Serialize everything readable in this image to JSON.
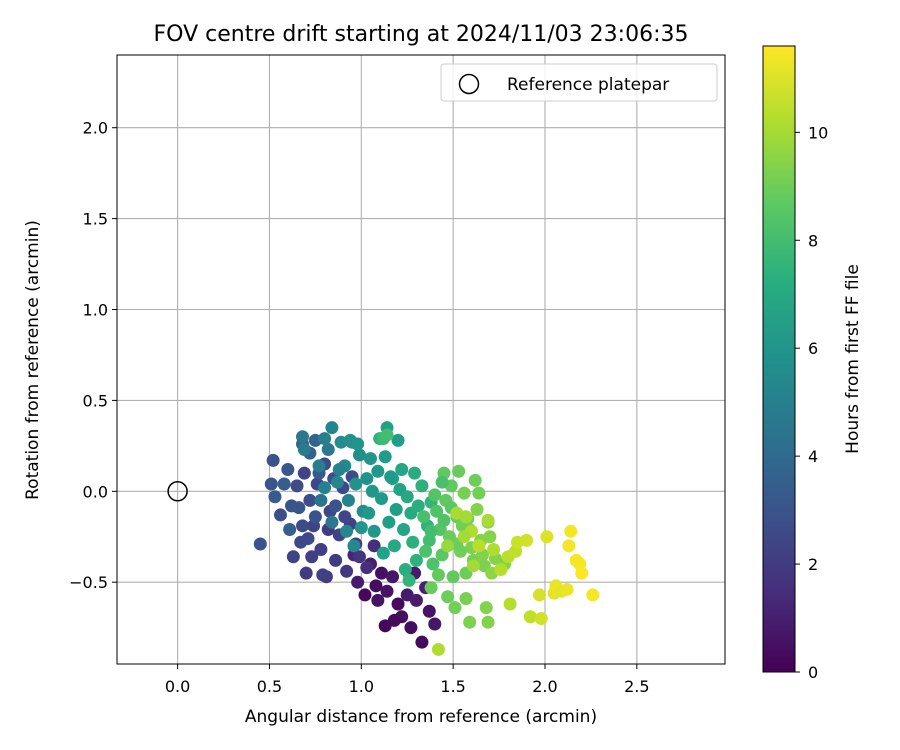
{
  "chart_data": {
    "type": "scatter",
    "title": "FOV centre drift starting at 2024/11/03 23:06:35",
    "xlabel": "Angular distance from reference (arcmin)",
    "ylabel": "Rotation from reference (arcmin)",
    "xlim": [
      -0.33,
      2.98
    ],
    "ylim": [
      -0.95,
      2.4
    ],
    "xticks": [
      0.0,
      0.5,
      1.0,
      1.5,
      2.0,
      2.5
    ],
    "yticks": [
      -0.5,
      0.0,
      0.5,
      1.0,
      1.5,
      2.0
    ],
    "xtick_labels": [
      "0.0",
      "0.5",
      "1.0",
      "1.5",
      "2.0",
      "2.5"
    ],
    "ytick_labels": [
      "−0.5",
      "0.0",
      "0.5",
      "1.0",
      "1.5",
      "2.0"
    ],
    "grid": true,
    "legend": {
      "placement": "top-right",
      "entries": [
        "Reference platepar"
      ]
    },
    "reference_point": {
      "x": 0.0,
      "y": 0.0,
      "label": "Reference platepar"
    },
    "colorbar": {
      "label": "Hours from first FF file",
      "colormap": "viridis",
      "range": [
        0,
        11.6
      ],
      "ticks": [
        0,
        2,
        4,
        6,
        8,
        10
      ],
      "tick_labels": [
        "0",
        "2",
        "4",
        "6",
        "8",
        "10"
      ]
    },
    "series": [
      {
        "points": [
          [
            1.02,
            -0.57,
            0.2
          ],
          [
            1.08,
            -0.52,
            0.4
          ],
          [
            1.11,
            -0.45,
            0.5
          ],
          [
            1.14,
            -0.55,
            0.6
          ],
          [
            1.17,
            -0.47,
            0.7
          ],
          [
            1.2,
            -0.62,
            0.3
          ],
          [
            1.22,
            -0.69,
            0.5
          ],
          [
            1.25,
            -0.57,
            0.8
          ],
          [
            1.27,
            -0.75,
            0.4
          ],
          [
            1.3,
            -0.6,
            0.9
          ],
          [
            1.33,
            -0.83,
            0.3
          ],
          [
            1.37,
            -0.66,
            0.6
          ],
          [
            1.13,
            -0.74,
            0.2
          ],
          [
            1.18,
            -0.71,
            0.3
          ],
          [
            1.26,
            -0.45,
            1.0
          ],
          [
            1.35,
            -0.53,
            1.1
          ],
          [
            1.4,
            -0.73,
            0.7
          ],
          [
            0.98,
            -0.5,
            0.9
          ],
          [
            1.05,
            -0.4,
            1.0
          ],
          [
            0.96,
            -0.35,
            1.2
          ],
          [
            1.29,
            -0.45,
            0.9
          ],
          [
            1.09,
            -0.6,
            0.6
          ],
          [
            0.45,
            -0.29,
            3.0
          ],
          [
            0.51,
            0.04,
            3.1
          ],
          [
            0.52,
            0.17,
            2.9
          ],
          [
            0.56,
            -0.13,
            2.8
          ],
          [
            0.6,
            0.12,
            3.2
          ],
          [
            0.62,
            -0.08,
            3.0
          ],
          [
            0.65,
            0.03,
            2.6
          ],
          [
            0.67,
            -0.28,
            2.5
          ],
          [
            0.69,
            0.1,
            2.4
          ],
          [
            0.72,
            -0.05,
            2.7
          ],
          [
            0.74,
            -0.19,
            2.3
          ],
          [
            0.76,
            0.04,
            2.5
          ],
          [
            0.78,
            -0.32,
            2.2
          ],
          [
            0.8,
            0.15,
            2.6
          ],
          [
            0.81,
            -0.47,
            2.1
          ],
          [
            0.83,
            -0.11,
            2.4
          ],
          [
            0.85,
            0.07,
            2.8
          ],
          [
            0.86,
            -0.38,
            2.0
          ],
          [
            0.88,
            -0.24,
            2.3
          ],
          [
            0.9,
            0.02,
            2.5
          ],
          [
            0.92,
            -0.44,
            1.9
          ],
          [
            0.94,
            -0.18,
            2.2
          ],
          [
            0.95,
            0.08,
            2.6
          ],
          [
            0.97,
            -0.29,
            2.1
          ],
          [
            0.99,
            -0.36,
            1.8
          ],
          [
            0.7,
            -0.45,
            2.0
          ],
          [
            0.63,
            -0.36,
            2.3
          ],
          [
            0.73,
            -0.36,
            2.2
          ],
          [
            0.58,
            0.04,
            3.4
          ],
          [
            0.53,
            -0.03,
            3.3
          ],
          [
            0.66,
            -0.09,
            3.1
          ],
          [
            0.75,
            -0.14,
            3.0
          ],
          [
            0.79,
            -0.46,
            2.2
          ],
          [
            0.82,
            -0.21,
            2.0
          ],
          [
            0.68,
            -0.19,
            2.6
          ],
          [
            0.71,
            -0.26,
            2.5
          ],
          [
            0.77,
            0.1,
            3.3
          ],
          [
            0.61,
            -0.21,
            3.5
          ],
          [
            0.86,
            -0.08,
            3.0
          ],
          [
            0.91,
            -0.14,
            2.4
          ],
          [
            0.72,
            0.21,
            3.6
          ],
          [
            0.68,
            0.26,
            3.7
          ],
          [
            0.75,
            0.28,
            3.6
          ],
          [
            1.03,
            -0.42,
            1.5
          ],
          [
            1.07,
            -0.3,
            1.6
          ],
          [
            0.68,
            0.3,
            4.6
          ],
          [
            0.69,
            0.23,
            4.8
          ],
          [
            0.77,
            0.14,
            4.9
          ],
          [
            0.8,
            0.02,
            5.1
          ],
          [
            0.84,
            0.35,
            5.3
          ],
          [
            0.87,
            0.05,
            5.4
          ],
          [
            0.89,
            0.27,
            5.6
          ],
          [
            0.91,
            0.14,
            5.5
          ],
          [
            0.93,
            -0.05,
            5.2
          ],
          [
            0.95,
            0.27,
            5.8
          ],
          [
            0.97,
            0.04,
            5.9
          ],
          [
            0.99,
            0.2,
            5.7
          ],
          [
            1.01,
            -0.11,
            5.6
          ],
          [
            1.03,
            0.07,
            5.9
          ],
          [
            1.05,
            0.18,
            6.0
          ],
          [
            1.07,
            -0.22,
            6.1
          ],
          [
            1.09,
            0.11,
            6.2
          ],
          [
            1.11,
            -0.04,
            6.3
          ],
          [
            1.13,
            0.19,
            6.4
          ],
          [
            1.15,
            -0.17,
            6.5
          ],
          [
            1.17,
            0.07,
            6.6
          ],
          [
            1.19,
            -0.1,
            6.5
          ],
          [
            1.21,
            0.01,
            6.7
          ],
          [
            1.23,
            -0.21,
            6.8
          ],
          [
            1.25,
            -0.03,
            6.9
          ],
          [
            1.27,
            -0.12,
            7.0
          ],
          [
            1.29,
            0.1,
            7.1
          ],
          [
            0.82,
            0.23,
            4.7
          ],
          [
            0.8,
            0.29,
            5.0
          ],
          [
            0.78,
            -0.05,
            4.4
          ],
          [
            0.84,
            -0.17,
            4.6
          ],
          [
            0.96,
            -0.3,
            5.5
          ],
          [
            1.0,
            -0.2,
            6.0
          ],
          [
            1.04,
            -0.12,
            6.2
          ],
          [
            1.14,
            0.35,
            6.6
          ],
          [
            1.2,
            0.28,
            6.4
          ],
          [
            1.22,
            0.12,
            6.8
          ],
          [
            1.31,
            -0.08,
            7.2
          ],
          [
            1.33,
            0.03,
            7.3
          ],
          [
            1.12,
            -0.34,
            6.7
          ],
          [
            1.18,
            -0.3,
            6.9
          ],
          [
            1.28,
            -0.28,
            7.3
          ],
          [
            1.36,
            -0.19,
            7.5
          ],
          [
            1.38,
            -0.06,
            7.6
          ],
          [
            1.3,
            -0.38,
            7.4
          ],
          [
            1.24,
            -0.43,
            7.2
          ],
          [
            1.26,
            -0.49,
            7.6
          ],
          [
            1.1,
            0.29,
            7.5
          ],
          [
            0.94,
            0.28,
            5.8
          ],
          [
            0.98,
            0.26,
            6.0
          ],
          [
            0.88,
            0.12,
            5.2
          ],
          [
            1.06,
            0.0,
            6.1
          ],
          [
            1.16,
            0.08,
            6.3
          ],
          [
            0.92,
            -0.22,
            5.4
          ],
          [
            1.34,
            -0.14,
            8.2
          ],
          [
            1.37,
            -0.27,
            8.0
          ],
          [
            1.39,
            -0.4,
            8.3
          ],
          [
            1.41,
            -0.11,
            8.4
          ],
          [
            1.43,
            -0.21,
            8.5
          ],
          [
            1.44,
            -0.35,
            8.6
          ],
          [
            1.46,
            -0.05,
            8.7
          ],
          [
            1.48,
            -0.25,
            8.9
          ],
          [
            1.5,
            -0.47,
            8.8
          ],
          [
            1.52,
            -0.14,
            9.0
          ],
          [
            1.54,
            -0.33,
            9.1
          ],
          [
            1.56,
            -0.01,
            9.2
          ],
          [
            1.57,
            -0.45,
            9.0
          ],
          [
            1.59,
            -0.21,
            9.3
          ],
          [
            1.61,
            -0.38,
            9.2
          ],
          [
            1.63,
            -0.1,
            9.4
          ],
          [
            1.65,
            -0.27,
            9.5
          ],
          [
            1.67,
            -0.41,
            9.3
          ],
          [
            1.69,
            -0.17,
            9.5
          ],
          [
            1.71,
            -0.45,
            9.6
          ],
          [
            1.73,
            -0.37,
            9.5
          ],
          [
            1.78,
            -0.4,
            9.4
          ],
          [
            1.47,
            -0.58,
            9.0
          ],
          [
            1.51,
            -0.64,
            9.1
          ],
          [
            1.57,
            -0.59,
            9.2
          ],
          [
            1.59,
            -0.72,
            9.3
          ],
          [
            1.68,
            -0.64,
            9.4
          ],
          [
            1.69,
            -0.72,
            9.4
          ],
          [
            1.38,
            -0.53,
            8.9
          ],
          [
            1.4,
            -0.02,
            8.5
          ],
          [
            1.45,
            0.1,
            8.7
          ],
          [
            1.49,
            0.03,
            8.8
          ],
          [
            1.53,
            0.11,
            8.9
          ],
          [
            1.62,
            0.06,
            9.0
          ],
          [
            1.64,
            -0.01,
            9.1
          ],
          [
            1.55,
            -0.19,
            9.1
          ],
          [
            1.6,
            -0.31,
            9.3
          ],
          [
            1.66,
            -0.35,
            9.4
          ],
          [
            1.42,
            -0.46,
            8.8
          ],
          [
            1.35,
            -0.33,
            8.3
          ],
          [
            1.44,
            0.05,
            8.2
          ],
          [
            1.49,
            -0.09,
            8.6
          ],
          [
            1.7,
            -0.25,
            9.5
          ],
          [
            1.58,
            -0.15,
            9.2
          ],
          [
            1.52,
            -0.29,
            9.0
          ],
          [
            1.38,
            -0.22,
            8.1
          ],
          [
            1.45,
            -0.16,
            8.4
          ],
          [
            1.12,
            0.29,
            7.9
          ],
          [
            1.14,
            0.31,
            8.1
          ],
          [
            1.42,
            -0.87,
            10.2
          ],
          [
            1.52,
            -0.12,
            10.1
          ],
          [
            1.6,
            -0.22,
            10.2
          ],
          [
            1.61,
            -0.41,
            10.0
          ],
          [
            1.69,
            -0.16,
            10.1
          ],
          [
            1.72,
            -0.32,
            10.2
          ],
          [
            1.76,
            -0.43,
            10.3
          ],
          [
            1.8,
            -0.36,
            10.4
          ],
          [
            1.81,
            -0.62,
            10.3
          ],
          [
            1.84,
            -0.33,
            10.5
          ],
          [
            1.85,
            -0.28,
            10.7
          ],
          [
            1.9,
            -0.27,
            10.8
          ],
          [
            1.92,
            -0.69,
            10.5
          ],
          [
            1.97,
            -0.57,
            10.9
          ],
          [
            1.98,
            -0.7,
            10.8
          ],
          [
            2.01,
            -0.25,
            11.0
          ],
          [
            2.05,
            -0.56,
            11.1
          ],
          [
            2.06,
            -0.52,
            11.2
          ],
          [
            2.07,
            -0.54,
            11.3
          ],
          [
            2.09,
            -0.55,
            11.2
          ],
          [
            2.12,
            -0.54,
            11.3
          ],
          [
            2.13,
            -0.3,
            11.4
          ],
          [
            2.14,
            -0.22,
            11.4
          ],
          [
            2.17,
            -0.38,
            11.5
          ],
          [
            2.19,
            -0.4,
            11.5
          ],
          [
            2.2,
            -0.45,
            11.6
          ],
          [
            2.26,
            -0.57,
            11.5
          ],
          [
            1.64,
            -0.3,
            10.4
          ],
          [
            1.57,
            -0.14,
            10.0
          ],
          [
            1.47,
            -0.3,
            9.8
          ],
          [
            1.56,
            -0.25,
            10.0
          ]
        ]
      }
    ]
  }
}
